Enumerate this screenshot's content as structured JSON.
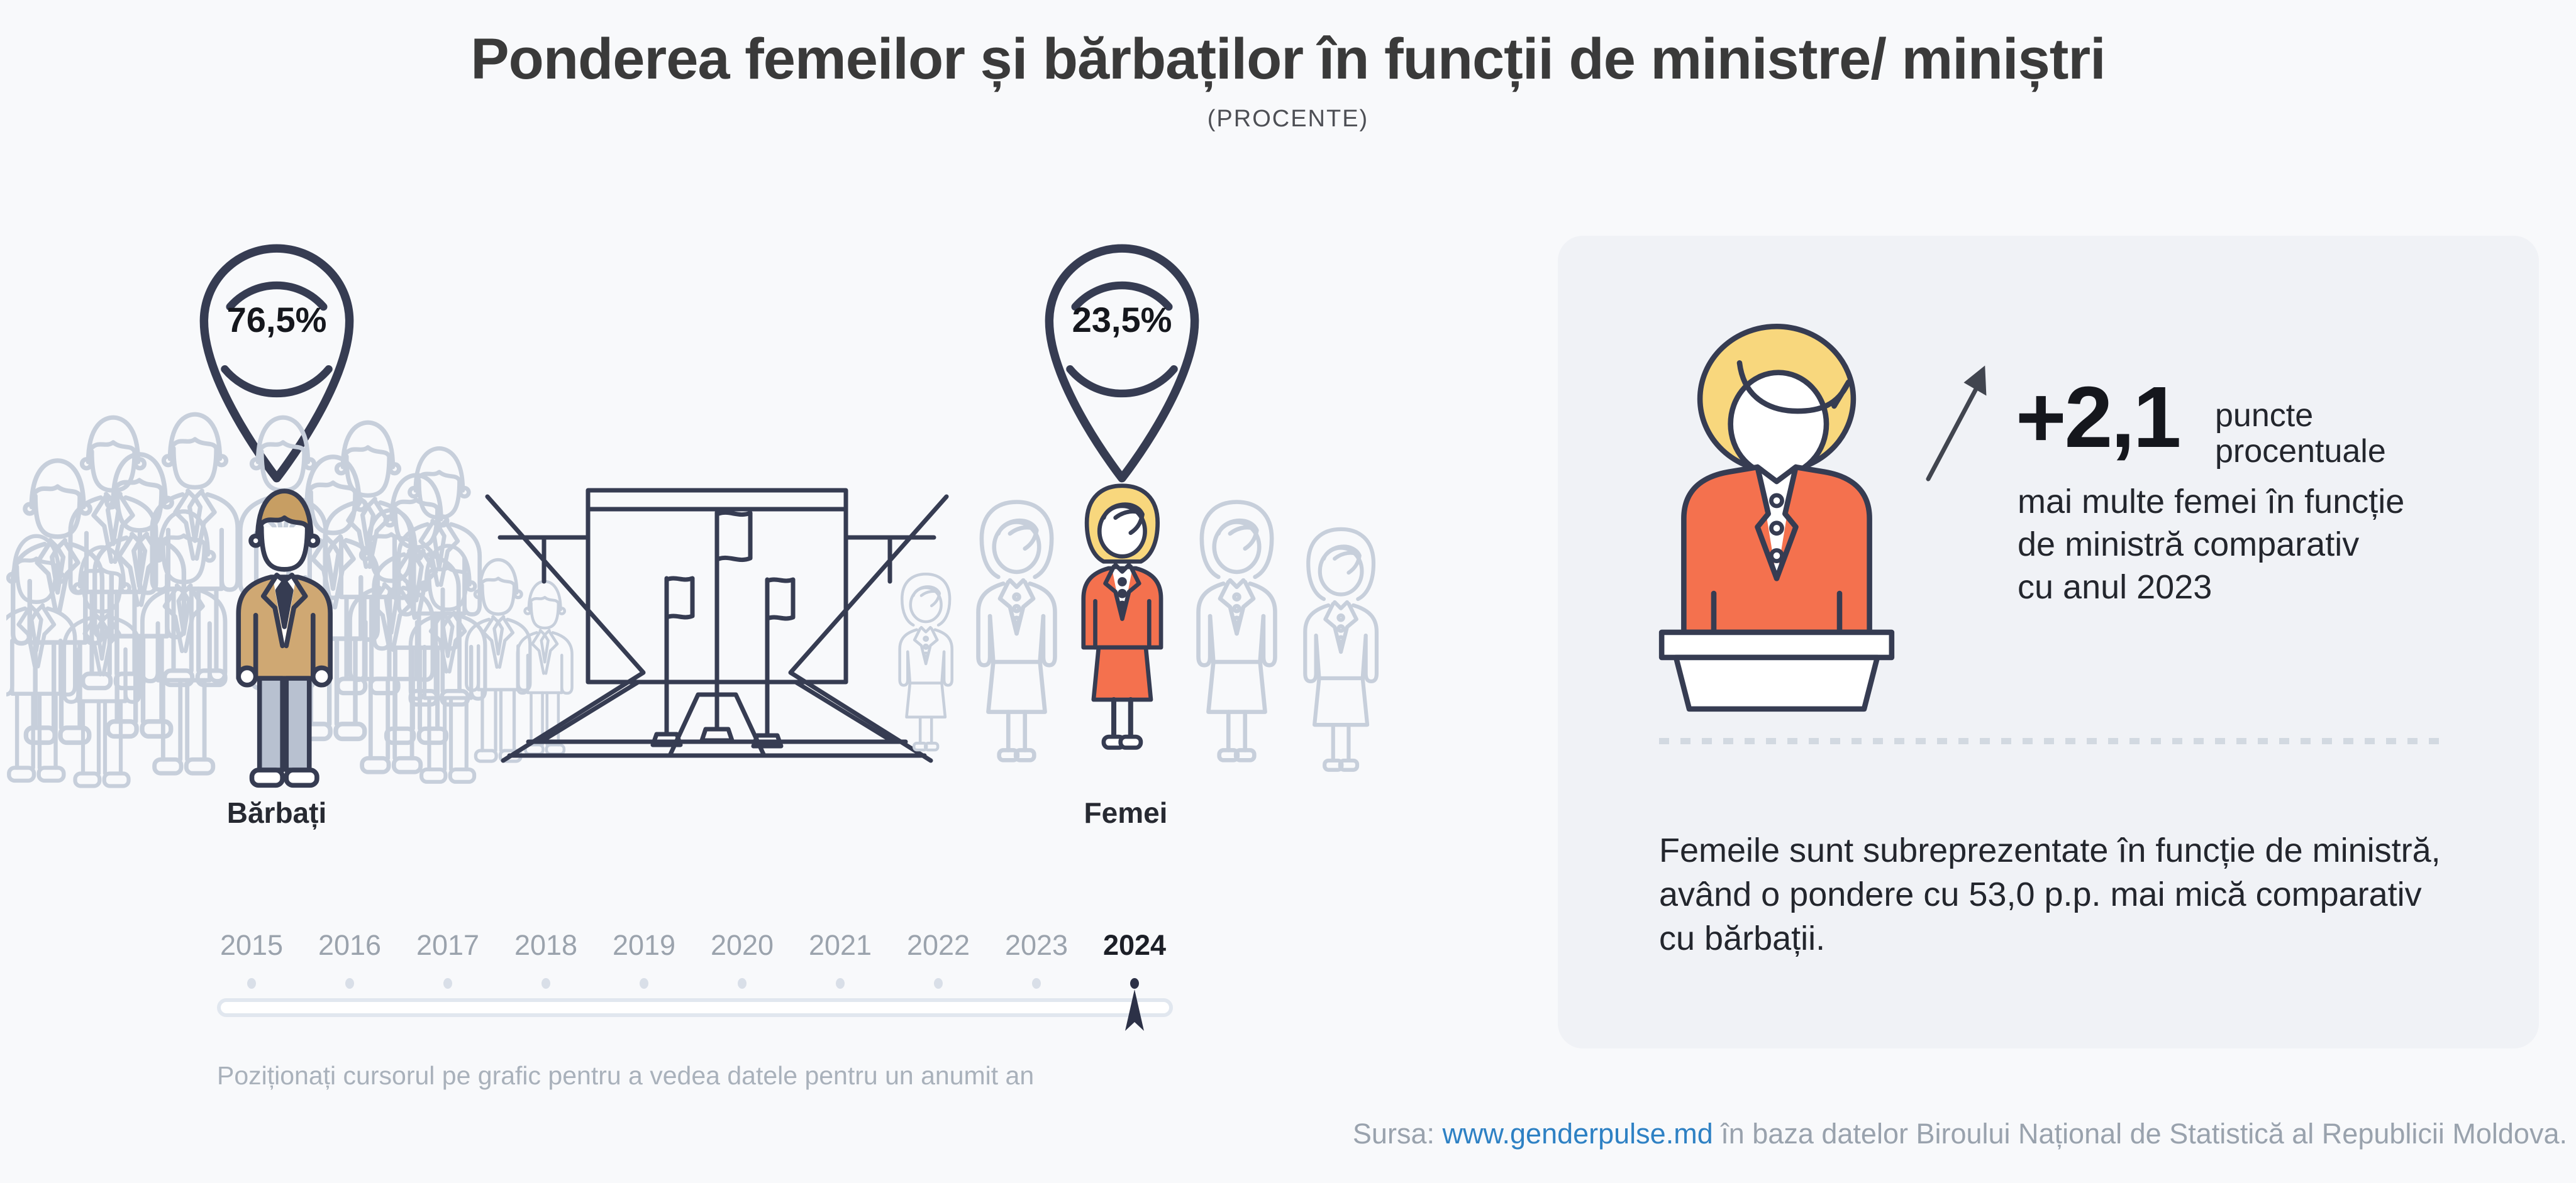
{
  "header": {
    "title": "Ponderea femeilor și bărbaților în funcții de ministre/ miniștri",
    "subtitle": "(PROCENTE)"
  },
  "chart_data": {
    "type": "bar",
    "title": "Ponderea femeilor și bărbaților în funcții de ministre/ miniștri",
    "subtitle": "(PROCENTE)",
    "unit": "%",
    "categories": [
      "Bărbați",
      "Femei"
    ],
    "values": [
      76.5,
      23.5
    ],
    "value_labels": [
      "76,5%",
      "23,5%"
    ],
    "selected_year": "2024",
    "change_vs_2023_pp": 2.1,
    "gender_gap_pp": 53.0,
    "legend_position": "none"
  },
  "groups": {
    "men": {
      "label": "Bărbați",
      "value_label": "76,5%"
    },
    "women": {
      "label": "Femei",
      "value_label": "23,5%"
    }
  },
  "timeline": {
    "years": [
      "2015",
      "2016",
      "2017",
      "2018",
      "2019",
      "2020",
      "2021",
      "2022",
      "2023",
      "2024"
    ],
    "selected": "2024",
    "hint": "Poziționați cursorul pe grafic pentru a vedea datele pentru un anumit an"
  },
  "panel": {
    "delta_value": "+2,1",
    "delta_unit_lines": [
      "puncte",
      "procentuale"
    ],
    "delta_desc_lines": [
      "mai multe femei în funcție",
      "de ministră comparativ",
      "cu anul 2023"
    ],
    "note_lines": [
      "Femeile sunt subreprezentate în funcție de ministră,",
      "având o pondere cu 53,0 p.p. mai mică comparativ",
      "cu bărbații."
    ]
  },
  "footer": {
    "source_prefix": "Sursa:",
    "source_link": "www.genderpulse.md",
    "source_suffix": "în baza datelor Biroului Național de Statistică al Republicii Moldova."
  },
  "colors": {
    "background": "#f8f9fb",
    "card_background": "#f0f2f6",
    "outline_navy": "#363c52",
    "crowd_gray": "#c7cfdb",
    "accent_orange": "#f4714e",
    "accent_tan": "#cfa873",
    "hair_blonde": "#f8d77d",
    "link_blue": "#2e81c4"
  }
}
